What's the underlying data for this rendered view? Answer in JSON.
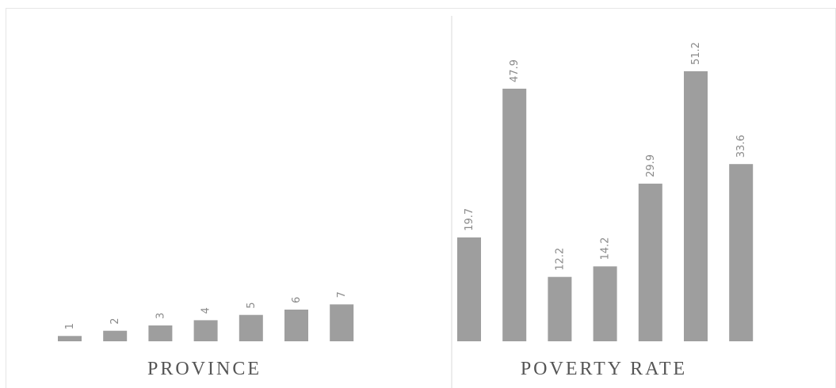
{
  "chart_data": [
    {
      "type": "bar",
      "xlabel": "PROVINCE",
      "values": [
        1,
        2,
        3,
        4,
        5,
        6,
        7
      ],
      "data_labels": [
        "1",
        "2",
        "3",
        "4",
        "5",
        "6",
        "7"
      ],
      "ylim": [
        0,
        51.2
      ],
      "grid": false,
      "color": "#9e9e9e"
    },
    {
      "type": "bar",
      "xlabel": "POVERTY RATE",
      "values": [
        19.7,
        47.9,
        12.2,
        14.2,
        29.9,
        51.2,
        33.6
      ],
      "data_labels": [
        "19.7",
        "47.9",
        "12.2",
        "14.2",
        "29.9",
        "51.2",
        "33.6"
      ],
      "ylim": [
        0,
        51.2
      ],
      "grid": false,
      "color": "#9e9e9e"
    }
  ]
}
